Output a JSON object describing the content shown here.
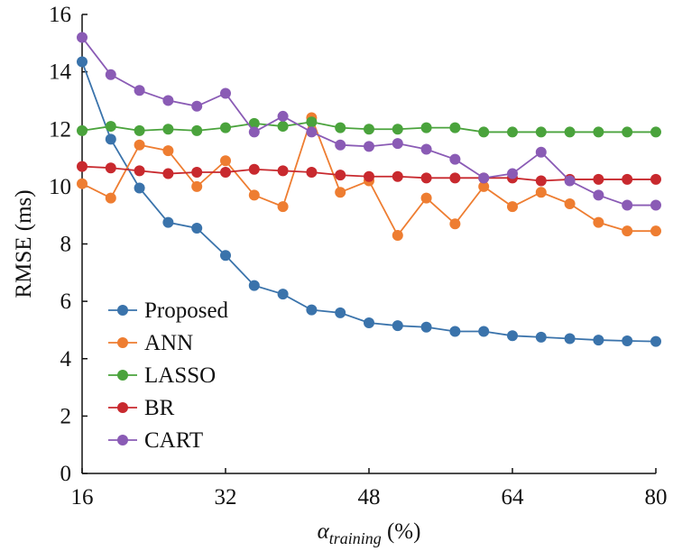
{
  "chart_data": {
    "type": "line",
    "title": "",
    "xlabel": "α",
    "xlabel_subscript": "training",
    "xlabel_unit": "(%)",
    "ylabel": "RMSE (ms)",
    "xlim": [
      16,
      80
    ],
    "ylim": [
      0,
      16
    ],
    "xticks": [
      16,
      32,
      48,
      64,
      80
    ],
    "yticks": [
      0,
      2,
      4,
      6,
      8,
      10,
      12,
      14,
      16
    ],
    "grid": false,
    "legend_position": "bottom-left",
    "x": [
      16,
      19.2,
      22.4,
      25.6,
      28.8,
      32,
      35.2,
      38.4,
      41.6,
      44.8,
      48,
      51.2,
      54.4,
      57.6,
      60.8,
      64,
      67.2,
      70.4,
      73.6,
      76.8,
      80
    ],
    "series": [
      {
        "name": "Proposed",
        "color": "#3a73ab",
        "values": [
          14.35,
          11.65,
          9.95,
          8.75,
          8.55,
          7.6,
          6.55,
          6.25,
          5.7,
          5.6,
          5.25,
          5.15,
          5.1,
          4.95,
          4.95,
          4.8,
          4.75,
          4.7,
          4.65,
          4.62,
          4.6
        ]
      },
      {
        "name": "ANN",
        "color": "#ee7d31",
        "values": [
          10.1,
          9.6,
          11.45,
          11.25,
          10.0,
          10.9,
          9.7,
          9.3,
          12.4,
          9.8,
          10.2,
          8.3,
          9.6,
          8.7,
          10.0,
          9.3,
          9.8,
          9.4,
          8.75,
          8.45,
          8.45
        ]
      },
      {
        "name": "LASSO",
        "color": "#4aa33c",
        "values": [
          11.95,
          12.1,
          11.95,
          12.0,
          11.95,
          12.05,
          12.2,
          12.1,
          12.25,
          12.05,
          12.0,
          12.0,
          12.05,
          12.05,
          11.9,
          11.9,
          11.9,
          11.9,
          11.9,
          11.9,
          11.9
        ]
      },
      {
        "name": "BR",
        "color": "#c8292e",
        "values": [
          10.7,
          10.65,
          10.55,
          10.45,
          10.5,
          10.5,
          10.6,
          10.55,
          10.5,
          10.4,
          10.35,
          10.35,
          10.3,
          10.3,
          10.3,
          10.3,
          10.2,
          10.25,
          10.25,
          10.25,
          10.25
        ]
      },
      {
        "name": "CART",
        "color": "#8a5bb5",
        "values": [
          15.2,
          13.9,
          13.35,
          13.0,
          12.8,
          13.25,
          11.9,
          12.45,
          11.9,
          11.45,
          11.4,
          11.5,
          11.3,
          10.95,
          10.3,
          10.45,
          11.2,
          10.2,
          9.7,
          9.35,
          9.35
        ]
      }
    ]
  }
}
